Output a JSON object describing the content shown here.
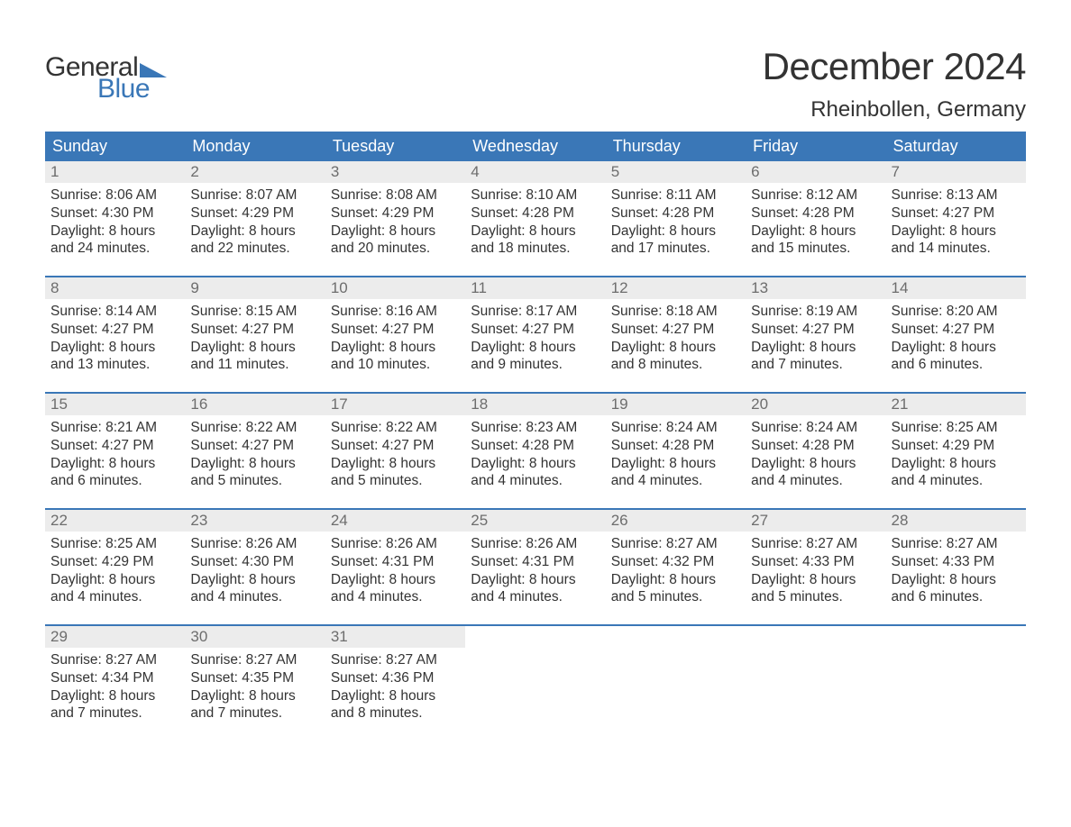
{
  "brand": {
    "word1": "General",
    "word2": "Blue",
    "word1_color": "#333333",
    "word2_color": "#3a77b7",
    "triangle_color": "#3a77b7",
    "fontsize": 30
  },
  "header": {
    "title": "December 2024",
    "title_fontsize": 42,
    "title_color": "#333333",
    "location": "Rheinbollen, Germany",
    "location_fontsize": 24,
    "location_color": "#333333"
  },
  "calendar": {
    "type": "calendar-table",
    "columns": [
      "Sunday",
      "Monday",
      "Tuesday",
      "Wednesday",
      "Thursday",
      "Friday",
      "Saturday"
    ],
    "header_bg": "#3a77b7",
    "header_text_color": "#ffffff",
    "header_fontsize": 18,
    "daynum_bg": "#ececec",
    "daynum_color": "#6d6d6d",
    "daynum_fontsize": 17,
    "body_fontsize": 15.5,
    "body_text_color": "#333333",
    "week_divider_color": "#3a77b7",
    "background_color": "#ffffff",
    "weeks": [
      [
        {
          "day": "1",
          "sunrise": "Sunrise: 8:06 AM",
          "sunset": "Sunset: 4:30 PM",
          "daylight1": "Daylight: 8 hours",
          "daylight2": "and 24 minutes."
        },
        {
          "day": "2",
          "sunrise": "Sunrise: 8:07 AM",
          "sunset": "Sunset: 4:29 PM",
          "daylight1": "Daylight: 8 hours",
          "daylight2": "and 22 minutes."
        },
        {
          "day": "3",
          "sunrise": "Sunrise: 8:08 AM",
          "sunset": "Sunset: 4:29 PM",
          "daylight1": "Daylight: 8 hours",
          "daylight2": "and 20 minutes."
        },
        {
          "day": "4",
          "sunrise": "Sunrise: 8:10 AM",
          "sunset": "Sunset: 4:28 PM",
          "daylight1": "Daylight: 8 hours",
          "daylight2": "and 18 minutes."
        },
        {
          "day": "5",
          "sunrise": "Sunrise: 8:11 AM",
          "sunset": "Sunset: 4:28 PM",
          "daylight1": "Daylight: 8 hours",
          "daylight2": "and 17 minutes."
        },
        {
          "day": "6",
          "sunrise": "Sunrise: 8:12 AM",
          "sunset": "Sunset: 4:28 PM",
          "daylight1": "Daylight: 8 hours",
          "daylight2": "and 15 minutes."
        },
        {
          "day": "7",
          "sunrise": "Sunrise: 8:13 AM",
          "sunset": "Sunset: 4:27 PM",
          "daylight1": "Daylight: 8 hours",
          "daylight2": "and 14 minutes."
        }
      ],
      [
        {
          "day": "8",
          "sunrise": "Sunrise: 8:14 AM",
          "sunset": "Sunset: 4:27 PM",
          "daylight1": "Daylight: 8 hours",
          "daylight2": "and 13 minutes."
        },
        {
          "day": "9",
          "sunrise": "Sunrise: 8:15 AM",
          "sunset": "Sunset: 4:27 PM",
          "daylight1": "Daylight: 8 hours",
          "daylight2": "and 11 minutes."
        },
        {
          "day": "10",
          "sunrise": "Sunrise: 8:16 AM",
          "sunset": "Sunset: 4:27 PM",
          "daylight1": "Daylight: 8 hours",
          "daylight2": "and 10 minutes."
        },
        {
          "day": "11",
          "sunrise": "Sunrise: 8:17 AM",
          "sunset": "Sunset: 4:27 PM",
          "daylight1": "Daylight: 8 hours",
          "daylight2": "and 9 minutes."
        },
        {
          "day": "12",
          "sunrise": "Sunrise: 8:18 AM",
          "sunset": "Sunset: 4:27 PM",
          "daylight1": "Daylight: 8 hours",
          "daylight2": "and 8 minutes."
        },
        {
          "day": "13",
          "sunrise": "Sunrise: 8:19 AM",
          "sunset": "Sunset: 4:27 PM",
          "daylight1": "Daylight: 8 hours",
          "daylight2": "and 7 minutes."
        },
        {
          "day": "14",
          "sunrise": "Sunrise: 8:20 AM",
          "sunset": "Sunset: 4:27 PM",
          "daylight1": "Daylight: 8 hours",
          "daylight2": "and 6 minutes."
        }
      ],
      [
        {
          "day": "15",
          "sunrise": "Sunrise: 8:21 AM",
          "sunset": "Sunset: 4:27 PM",
          "daylight1": "Daylight: 8 hours",
          "daylight2": "and 6 minutes."
        },
        {
          "day": "16",
          "sunrise": "Sunrise: 8:22 AM",
          "sunset": "Sunset: 4:27 PM",
          "daylight1": "Daylight: 8 hours",
          "daylight2": "and 5 minutes."
        },
        {
          "day": "17",
          "sunrise": "Sunrise: 8:22 AM",
          "sunset": "Sunset: 4:27 PM",
          "daylight1": "Daylight: 8 hours",
          "daylight2": "and 5 minutes."
        },
        {
          "day": "18",
          "sunrise": "Sunrise: 8:23 AM",
          "sunset": "Sunset: 4:28 PM",
          "daylight1": "Daylight: 8 hours",
          "daylight2": "and 4 minutes."
        },
        {
          "day": "19",
          "sunrise": "Sunrise: 8:24 AM",
          "sunset": "Sunset: 4:28 PM",
          "daylight1": "Daylight: 8 hours",
          "daylight2": "and 4 minutes."
        },
        {
          "day": "20",
          "sunrise": "Sunrise: 8:24 AM",
          "sunset": "Sunset: 4:28 PM",
          "daylight1": "Daylight: 8 hours",
          "daylight2": "and 4 minutes."
        },
        {
          "day": "21",
          "sunrise": "Sunrise: 8:25 AM",
          "sunset": "Sunset: 4:29 PM",
          "daylight1": "Daylight: 8 hours",
          "daylight2": "and 4 minutes."
        }
      ],
      [
        {
          "day": "22",
          "sunrise": "Sunrise: 8:25 AM",
          "sunset": "Sunset: 4:29 PM",
          "daylight1": "Daylight: 8 hours",
          "daylight2": "and 4 minutes."
        },
        {
          "day": "23",
          "sunrise": "Sunrise: 8:26 AM",
          "sunset": "Sunset: 4:30 PM",
          "daylight1": "Daylight: 8 hours",
          "daylight2": "and 4 minutes."
        },
        {
          "day": "24",
          "sunrise": "Sunrise: 8:26 AM",
          "sunset": "Sunset: 4:31 PM",
          "daylight1": "Daylight: 8 hours",
          "daylight2": "and 4 minutes."
        },
        {
          "day": "25",
          "sunrise": "Sunrise: 8:26 AM",
          "sunset": "Sunset: 4:31 PM",
          "daylight1": "Daylight: 8 hours",
          "daylight2": "and 4 minutes."
        },
        {
          "day": "26",
          "sunrise": "Sunrise: 8:27 AM",
          "sunset": "Sunset: 4:32 PM",
          "daylight1": "Daylight: 8 hours",
          "daylight2": "and 5 minutes."
        },
        {
          "day": "27",
          "sunrise": "Sunrise: 8:27 AM",
          "sunset": "Sunset: 4:33 PM",
          "daylight1": "Daylight: 8 hours",
          "daylight2": "and 5 minutes."
        },
        {
          "day": "28",
          "sunrise": "Sunrise: 8:27 AM",
          "sunset": "Sunset: 4:33 PM",
          "daylight1": "Daylight: 8 hours",
          "daylight2": "and 6 minutes."
        }
      ],
      [
        {
          "day": "29",
          "sunrise": "Sunrise: 8:27 AM",
          "sunset": "Sunset: 4:34 PM",
          "daylight1": "Daylight: 8 hours",
          "daylight2": "and 7 minutes."
        },
        {
          "day": "30",
          "sunrise": "Sunrise: 8:27 AM",
          "sunset": "Sunset: 4:35 PM",
          "daylight1": "Daylight: 8 hours",
          "daylight2": "and 7 minutes."
        },
        {
          "day": "31",
          "sunrise": "Sunrise: 8:27 AM",
          "sunset": "Sunset: 4:36 PM",
          "daylight1": "Daylight: 8 hours",
          "daylight2": "and 8 minutes."
        },
        null,
        null,
        null,
        null
      ]
    ]
  }
}
